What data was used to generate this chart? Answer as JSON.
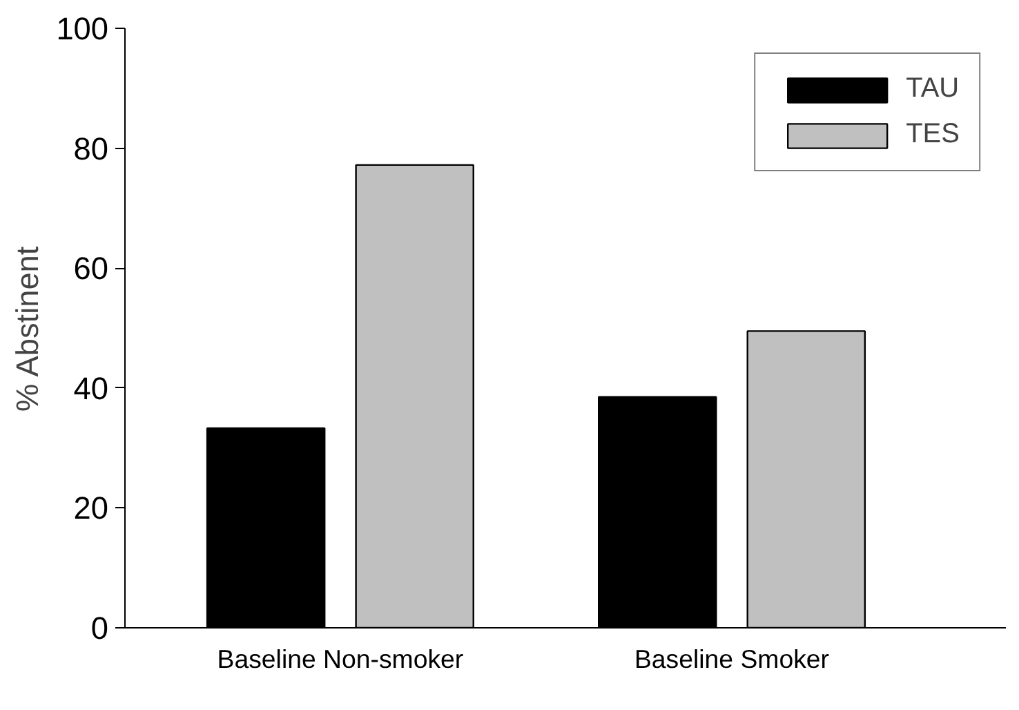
{
  "chart_data": {
    "type": "bar",
    "ylabel": "% Abstinent",
    "categories": [
      "Baseline Non-smoker",
      "Baseline Smoker"
    ],
    "series": [
      {
        "name": "TAU",
        "color": "#000000",
        "values": [
          33.3,
          38.5
        ]
      },
      {
        "name": "TES",
        "color": "#c0c0c0",
        "values": [
          77.2,
          49.5
        ]
      }
    ],
    "ylim": [
      0,
      100
    ],
    "yticks": [
      0,
      20,
      40,
      60,
      80,
      100
    ],
    "grid": false,
    "legend": "top right"
  }
}
